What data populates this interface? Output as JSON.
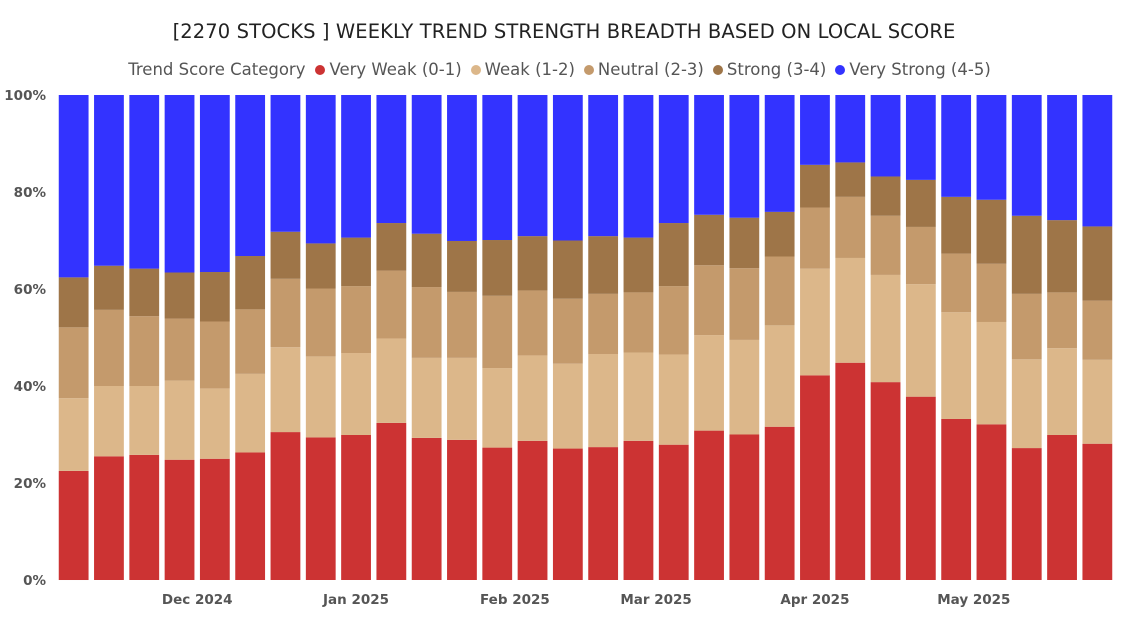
{
  "chart_data": {
    "type": "bar",
    "stacked": true,
    "normalized": true,
    "title": "[2270 STOCKS ] WEEKLY TREND STRENGTH BREADTH BASED ON LOCAL SCORE",
    "legend_title": "Trend Score Category",
    "legend_position": "top",
    "y_ticks": [
      "0%",
      "20%",
      "40%",
      "60%",
      "80%",
      "100%"
    ],
    "ylim": [
      0,
      100
    ],
    "month_labels": [
      {
        "label": "Dec 2024",
        "bar_index": 3.5
      },
      {
        "label": "Jan 2025",
        "bar_index": 8
      },
      {
        "label": "Feb 2025",
        "bar_index": 12.5
      },
      {
        "label": "Mar 2025",
        "bar_index": 16.5
      },
      {
        "label": "Apr 2025",
        "bar_index": 21
      },
      {
        "label": "May 2025",
        "bar_index": 25.5
      }
    ],
    "series": [
      {
        "name": "Very Weak (0-1)",
        "color": "#cc3333",
        "values": [
          22.5,
          25.5,
          25.8,
          24.8,
          25,
          26.3,
          30.5,
          29.4,
          29.9,
          32.4,
          29.3,
          28.9,
          27.3,
          28.7,
          27.1,
          27.4,
          28.7,
          27.9,
          30.8,
          30,
          31.6,
          42.2,
          44.8,
          40.8,
          37.8,
          33.2,
          32.1,
          27.2,
          29.9,
          28.1
        ]
      },
      {
        "name": "Weak (1-2)",
        "color": "#dcb78a",
        "values": [
          15,
          14.5,
          14.2,
          16.3,
          14.5,
          16.2,
          17.5,
          16.7,
          16.9,
          17.4,
          16.5,
          16.9,
          16.4,
          17.6,
          17.5,
          19.2,
          18.2,
          18.6,
          19.7,
          19.5,
          20.9,
          22,
          21.6,
          22.1,
          23.2,
          22,
          21.1,
          18.3,
          17.9,
          17.3
        ]
      },
      {
        "name": "Neutral (2-3)",
        "color": "#c49a6c",
        "values": [
          14.6,
          15.7,
          14.4,
          12.8,
          13.8,
          13.3,
          14.1,
          14,
          13.8,
          14,
          14.6,
          13.6,
          14.9,
          13.4,
          13.4,
          12.4,
          12.4,
          14.1,
          14.4,
          14.8,
          14.2,
          12.6,
          12.6,
          12.2,
          11.8,
          12.1,
          12,
          13.5,
          11.5,
          12.2
        ]
      },
      {
        "name": "Strong (3-4)",
        "color": "#9e7548",
        "values": [
          10.3,
          9.1,
          9.8,
          9.5,
          10.2,
          11,
          9.7,
          9.3,
          10,
          9.8,
          11,
          10.5,
          11.5,
          11.2,
          12,
          11.9,
          11.3,
          13,
          10.4,
          10.4,
          9.2,
          8.8,
          7.1,
          8.1,
          9.7,
          11.7,
          13.2,
          16.1,
          14.9,
          15.3
        ]
      },
      {
        "name": "Very Strong (4-5)",
        "color": "#3333ff",
        "values": [
          37.6,
          35.2,
          35.8,
          36.6,
          36.5,
          33.2,
          28.2,
          30.6,
          29.4,
          26.4,
          28.6,
          30.1,
          29.9,
          29.1,
          30,
          29.1,
          29.4,
          26.4,
          24.7,
          25.3,
          24.1,
          14.4,
          13.9,
          16.8,
          17.5,
          21,
          21.6,
          24.9,
          25.8,
          27.1
        ]
      }
    ]
  }
}
